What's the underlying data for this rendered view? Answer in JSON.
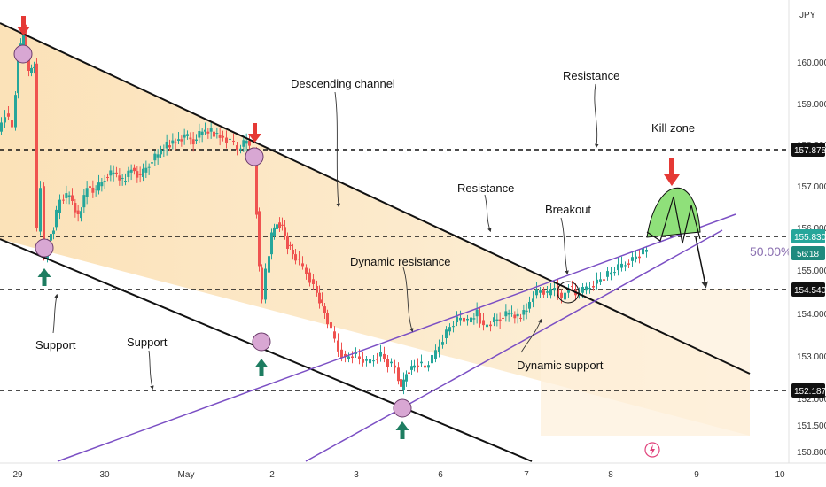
{
  "chart_data": {
    "type": "candlestick",
    "currency": "JPY",
    "ylim": [
      150.7,
      160.9
    ],
    "x_ticks": [
      "29",
      "30",
      "May",
      "2",
      "3",
      "6",
      "7",
      "8",
      "9",
      "10"
    ],
    "y_ticks": [
      "160.000",
      "159.000",
      "158.000",
      "157.000",
      "156.000",
      "155.000",
      "154.000",
      "153.000",
      "152.000",
      "151.500",
      "150.800"
    ],
    "levels": [
      {
        "label": "157.875",
        "value": 157.875
      },
      {
        "label": "155.830",
        "value": 155.83
      },
      {
        "label": "154.540",
        "value": 154.54
      },
      {
        "label": "152.187",
        "value": 152.187
      }
    ],
    "current_price": {
      "value": "155.830",
      "countdown": "56:18"
    },
    "fib_label": "50.00%",
    "annotations": {
      "descending_channel": "Descending channel",
      "resistance_top": "Resistance",
      "kill_zone": "Kill zone",
      "resistance_mid": "Resistance",
      "breakout": "Breakout",
      "dynamic_resistance": "Dynamic resistance",
      "dynamic_support": "Dynamic support",
      "support_left": "Support",
      "support_mid": "Support"
    },
    "colors": {
      "up": "#26a69a",
      "down": "#ef5350",
      "channel_fill": "#fde8bf",
      "channel_line": "#111111",
      "wedge_line": "#7b4fc4",
      "kill_zone_fill": "#8fe07a",
      "marker_fill": "#d8a7d3"
    }
  }
}
